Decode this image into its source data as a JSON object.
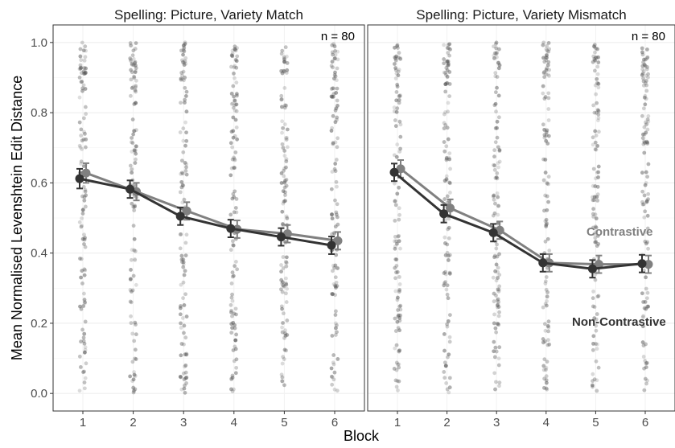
{
  "chart_data": {
    "type": "line",
    "xlabel": "Block",
    "ylabel": "Mean Normalised Levenshtein Edit Distance",
    "categories": [
      1,
      2,
      3,
      4,
      5,
      6
    ],
    "ylim": [
      -0.05,
      1.05
    ],
    "yticks": [
      "0.0",
      "0.2",
      "0.4",
      "0.6",
      "0.8",
      "1.0"
    ],
    "grid": true,
    "colors": {
      "contrastive": "#808080",
      "non_contrastive": "#333333",
      "points": "#555555",
      "grid": "#ebebeb",
      "panel_border": "#333333"
    },
    "legend_labels": {
      "contrastive": "Contrastive",
      "non_contrastive": "Non-Contrastive"
    },
    "panels": [
      {
        "title": "Spelling: Picture, Variety Match",
        "n_label": "n =  80",
        "series": [
          {
            "name": "Contrastive",
            "values": [
              0.628,
              0.575,
              0.52,
              0.468,
              0.455,
              0.435
            ],
            "errors": [
              0.028,
              0.025,
              0.025,
              0.025,
              0.025,
              0.025
            ]
          },
          {
            "name": "Non-Contrastive",
            "values": [
              0.612,
              0.582,
              0.505,
              0.47,
              0.446,
              0.422
            ],
            "errors": [
              0.028,
              0.025,
              0.025,
              0.025,
              0.025,
              0.025
            ]
          }
        ]
      },
      {
        "title": "Spelling: Picture, Variety Mismatch",
        "n_label": "n =  80",
        "legend": true,
        "series": [
          {
            "name": "Contrastive",
            "values": [
              0.64,
              0.528,
              0.465,
              0.372,
              0.368,
              0.368
            ],
            "errors": [
              0.025,
              0.025,
              0.025,
              0.025,
              0.025,
              0.025
            ]
          },
          {
            "name": "Non-Contrastive",
            "values": [
              0.63,
              0.512,
              0.458,
              0.372,
              0.355,
              0.37
            ],
            "errors": [
              0.025,
              0.025,
              0.025,
              0.025,
              0.025,
              0.025
            ]
          }
        ]
      }
    ]
  }
}
